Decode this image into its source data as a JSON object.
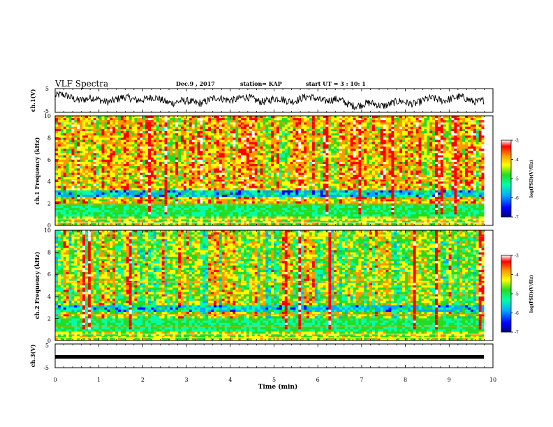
{
  "header": {
    "title": "VLF Spectra",
    "date": "Dec.9 , 2017",
    "station": "station= KAP",
    "start": "start UT = 3 : 10: 1"
  },
  "panels": {
    "ch1_wave": {
      "ylabel": "ch.1(V)",
      "ticks": [
        "5",
        "-5"
      ]
    },
    "ch1_spec": {
      "ylabel": "ch.1 Frequency (kHz)",
      "ticks": [
        "10",
        "8",
        "6",
        "4",
        "2",
        "0"
      ]
    },
    "ch2_spec": {
      "ylabel": "ch.2 Frequency (kHz)",
      "ticks": [
        "10",
        "8",
        "6",
        "4",
        "2",
        "0"
      ]
    },
    "ch3_wave": {
      "ylabel": "ch.3(V)",
      "ticks": [
        "5",
        "-5"
      ]
    }
  },
  "colorbar": {
    "label": "log(PSD)(V²/Hz)",
    "ticks": [
      "-3",
      "-4",
      "-5",
      "-6",
      "-7"
    ],
    "colors": [
      "#000080",
      "#0000ff",
      "#00aaff",
      "#00ffaa",
      "#22dd22",
      "#ffff00",
      "#ff9900",
      "#ff0000",
      "#ffffff"
    ]
  },
  "xaxis": {
    "label": "Time (min)",
    "ticks": [
      "0",
      "1",
      "2",
      "3",
      "4",
      "5",
      "6",
      "7",
      "8",
      "9",
      "10"
    ]
  },
  "chart_data": [
    {
      "type": "line",
      "panel": "ch1",
      "ylabel": "ch.1(V)",
      "ylim": [
        -5,
        5
      ],
      "xlim": [
        0,
        10
      ],
      "x": [
        0,
        1,
        2,
        3,
        4,
        5,
        6,
        7,
        8,
        9,
        9.8
      ],
      "values": [
        2,
        0,
        1,
        -1,
        1,
        0,
        1,
        -2,
        -1,
        1,
        0
      ]
    },
    {
      "type": "heatmap",
      "panel": "ch1",
      "ylabel": "Frequency (kHz)",
      "ylim": [
        0,
        10
      ],
      "xlim": [
        0,
        10
      ],
      "colorbar_range": [
        -7,
        -3
      ],
      "colorbar_label": "log(PSD)(V²/Hz)"
    },
    {
      "type": "heatmap",
      "panel": "ch2",
      "ylabel": "Frequency (kHz)",
      "ylim": [
        0,
        10
      ],
      "xlim": [
        0,
        10
      ],
      "colorbar_range": [
        -7,
        -3
      ],
      "colorbar_label": "log(PSD)(V²/Hz)"
    },
    {
      "type": "line",
      "panel": "ch3",
      "ylabel": "ch.3(V)",
      "ylim": [
        -5,
        5
      ],
      "xlim": [
        0,
        10
      ],
      "x": [
        0,
        9.8
      ],
      "values": [
        0,
        0
      ]
    }
  ]
}
